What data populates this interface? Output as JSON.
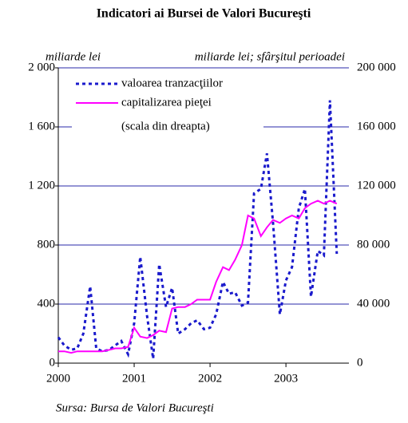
{
  "chart_data": {
    "type": "line",
    "title": "Indicatori ai Bursei de Valori Bucureşti",
    "y_label": "miliarde lei",
    "y2_label": "miliarde lei; sfârşitul perioadei",
    "legend_note": "(scala din dreapta)",
    "source": "Sursa: Bursa de Valori Bucureşti",
    "x": [
      2000,
      2000.08,
      2000.17,
      2000.25,
      2000.33,
      2000.42,
      2000.5,
      2000.58,
      2000.67,
      2000.75,
      2000.83,
      2000.92,
      2001,
      2001.08,
      2001.17,
      2001.25,
      2001.33,
      2001.42,
      2001.5,
      2001.58,
      2001.67,
      2001.75,
      2001.83,
      2001.92,
      2002,
      2002.08,
      2002.17,
      2002.25,
      2002.33,
      2002.42,
      2002.5,
      2002.58,
      2002.67,
      2002.75,
      2002.83,
      2002.92,
      2003,
      2003.08,
      2003.17,
      2003.25,
      2003.33,
      2003.42,
      2003.5,
      2003.58,
      2003.67
    ],
    "series": [
      {
        "name": "valoarea tranzacţiilor",
        "color": "#1a1acc",
        "dash": true,
        "values": [
          175,
          120,
          90,
          100,
          200,
          520,
          100,
          80,
          90,
          120,
          150,
          60,
          270,
          720,
          320,
          30,
          670,
          380,
          510,
          200,
          230,
          270,
          290,
          230,
          240,
          330,
          550,
          470,
          480,
          390,
          410,
          1150,
          1180,
          1420,
          950,
          330,
          560,
          650,
          1050,
          1180,
          450,
          760,
          730,
          1780,
          740
        ]
      },
      {
        "name": "capitalizarea pieţei",
        "color": "#ff00ff",
        "axis": "y2",
        "values": [
          8000,
          8000,
          7000,
          8000,
          8000,
          8000,
          8000,
          8000,
          9000,
          10000,
          10000,
          11000,
          24000,
          18000,
          17000,
          19000,
          22000,
          21000,
          37000,
          38000,
          38000,
          40000,
          43000,
          43000,
          43000,
          55000,
          65000,
          63000,
          70000,
          80000,
          100000,
          98000,
          86000,
          92000,
          97000,
          95000,
          98000,
          100000,
          98000,
          105000,
          108000,
          110000,
          108000,
          110000,
          108000
        ]
      }
    ],
    "xlim": [
      2000,
      2003.83
    ],
    "xticks": [
      2000,
      2001,
      2002,
      2003
    ],
    "ylim": [
      0,
      2000
    ],
    "yticks": [
      0,
      400,
      800,
      {
        "value": 1200,
        "label": "1 200"
      },
      {
        "value": 1600,
        "label": "1 600"
      },
      {
        "value": 2000,
        "label": "2 000"
      }
    ],
    "y2lim": [
      0,
      200000
    ],
    "y2ticks": [
      0,
      {
        "value": 40000,
        "label": "40 000"
      },
      {
        "value": 80000,
        "label": "80 000"
      },
      {
        "value": 120000,
        "label": "120 000"
      },
      {
        "value": 160000,
        "label": "160 000"
      },
      {
        "value": 200000,
        "label": "200 000"
      }
    ],
    "grid": true,
    "grid_color": "#2a2aa8"
  }
}
